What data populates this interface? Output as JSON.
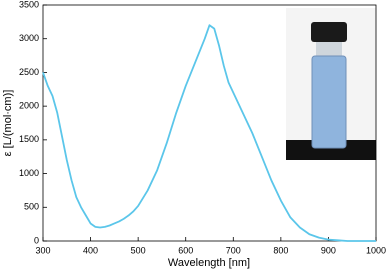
{
  "chart_data": {
    "type": "line",
    "xlabel": "Wavelength [nm]",
    "ylabel": "ε [L/(mol·cm)]",
    "x": [
      300,
      310,
      320,
      330,
      340,
      350,
      360,
      370,
      380,
      390,
      400,
      410,
      420,
      430,
      440,
      450,
      460,
      470,
      480,
      490,
      500,
      520,
      540,
      560,
      580,
      600,
      620,
      640,
      650,
      660,
      670,
      680,
      690,
      700,
      720,
      740,
      760,
      780,
      800,
      820,
      840,
      860,
      880,
      900,
      920,
      940,
      960,
      980,
      1000
    ],
    "series": [
      {
        "color": "#5bc6ea",
        "values": [
          2500,
          2300,
          2150,
          1900,
          1550,
          1200,
          900,
          650,
          500,
          380,
          260,
          210,
          200,
          210,
          230,
          260,
          290,
          330,
          380,
          440,
          520,
          750,
          1050,
          1450,
          1900,
          2300,
          2650,
          3000,
          3200,
          3150,
          2900,
          2600,
          2350,
          2200,
          1900,
          1600,
          1250,
          900,
          600,
          350,
          200,
          100,
          50,
          20,
          10,
          0,
          0,
          0,
          0
        ]
      }
    ],
    "xlim": [
      300,
      1000
    ],
    "xticks": [
      300,
      400,
      500,
      600,
      700,
      800,
      900,
      1000
    ],
    "ylim": [
      0,
      3500
    ],
    "yticks": [
      0,
      500,
      1000,
      1500,
      2000,
      2500,
      3000,
      3500
    ]
  }
}
